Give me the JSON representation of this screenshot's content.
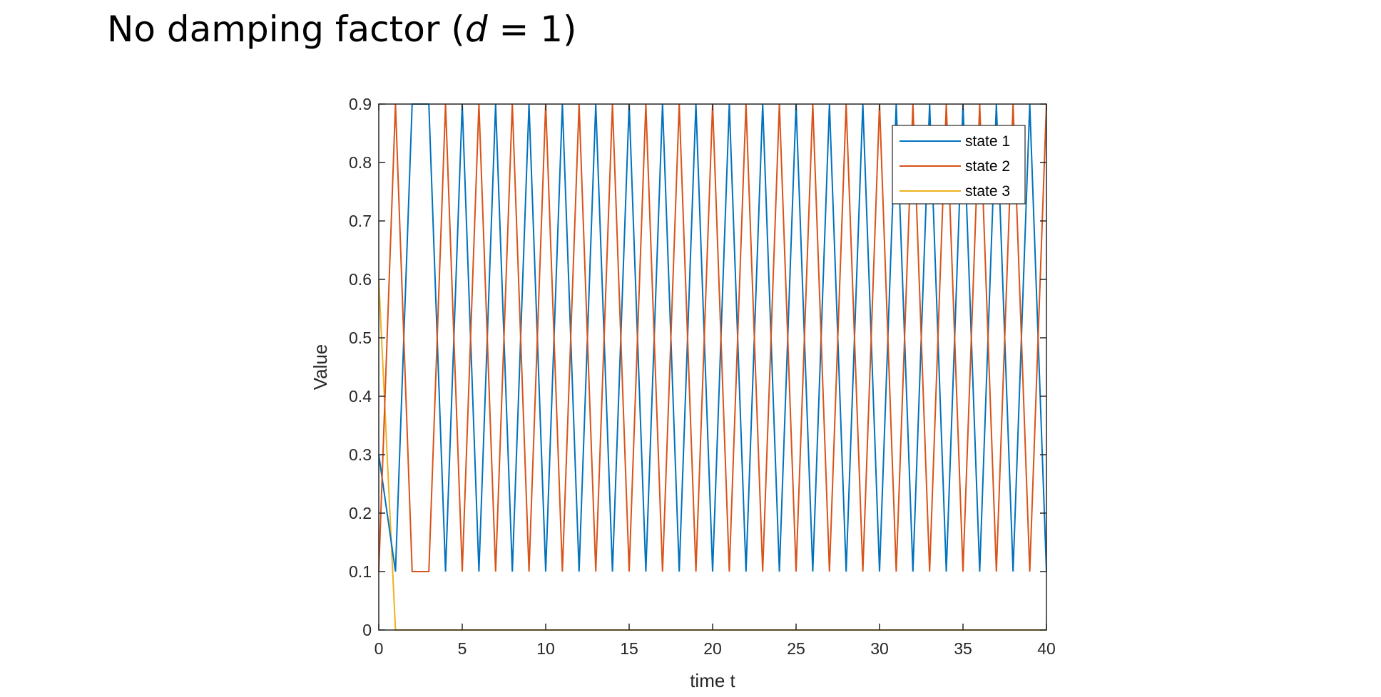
{
  "slide": {
    "title_prefix": "No damping factor (",
    "title_var": "d",
    "title_suffix": " = 1)"
  },
  "chart_data": {
    "type": "line",
    "title": "",
    "xlabel": "time t",
    "ylabel": "Value",
    "xlim": [
      0,
      40
    ],
    "ylim": [
      0,
      0.9
    ],
    "xticks": [
      0,
      5,
      10,
      15,
      20,
      25,
      30,
      35,
      40
    ],
    "yticks": [
      0,
      0.1,
      0.2,
      0.3,
      0.4,
      0.5,
      0.6,
      0.7,
      0.8,
      0.9
    ],
    "ytick_labels": [
      "0",
      "0.1",
      "0.2",
      "0.3",
      "0.4",
      "0.5",
      "0.6",
      "0.7",
      "0.8",
      "0.9"
    ],
    "grid": false,
    "legend_position": "top-right",
    "series": [
      {
        "name": "state 1",
        "color": "#0072BD",
        "x": [
          0,
          1,
          2,
          3,
          4,
          5,
          6,
          7,
          8,
          9,
          10,
          11,
          12,
          13,
          14,
          15,
          16,
          17,
          18,
          19,
          20,
          21,
          22,
          23,
          24,
          25,
          26,
          27,
          28,
          29,
          30,
          31,
          32,
          33,
          34,
          35,
          36,
          37,
          38,
          39,
          40
        ],
        "y": [
          0.3,
          0.1,
          0.9,
          0.9,
          0.1,
          0.9,
          0.1,
          0.9,
          0.1,
          0.9,
          0.1,
          0.9,
          0.1,
          0.9,
          0.1,
          0.9,
          0.1,
          0.9,
          0.1,
          0.9,
          0.1,
          0.9,
          0.1,
          0.9,
          0.1,
          0.9,
          0.1,
          0.9,
          0.1,
          0.9,
          0.1,
          0.9,
          0.1,
          0.9,
          0.1,
          0.9,
          0.1,
          0.9,
          0.1,
          0.9,
          0.1
        ]
      },
      {
        "name": "state 2",
        "color": "#D95319",
        "x": [
          0,
          1,
          2,
          3,
          4,
          5,
          6,
          7,
          8,
          9,
          10,
          11,
          12,
          13,
          14,
          15,
          16,
          17,
          18,
          19,
          20,
          21,
          22,
          23,
          24,
          25,
          26,
          27,
          28,
          29,
          30,
          31,
          32,
          33,
          34,
          35,
          36,
          37,
          38,
          39,
          40
        ],
        "y": [
          0.1,
          0.9,
          0.1,
          0.1,
          0.9,
          0.1,
          0.9,
          0.1,
          0.9,
          0.1,
          0.9,
          0.1,
          0.9,
          0.1,
          0.9,
          0.1,
          0.9,
          0.1,
          0.9,
          0.1,
          0.9,
          0.1,
          0.9,
          0.1,
          0.9,
          0.1,
          0.9,
          0.1,
          0.9,
          0.1,
          0.9,
          0.1,
          0.9,
          0.1,
          0.9,
          0.1,
          0.9,
          0.1,
          0.9,
          0.1,
          0.9
        ]
      },
      {
        "name": "state 3",
        "color": "#EDB120",
        "x": [
          0,
          1,
          2,
          3,
          4,
          5,
          6,
          7,
          8,
          9,
          10,
          11,
          12,
          13,
          14,
          15,
          16,
          17,
          18,
          19,
          20,
          21,
          22,
          23,
          24,
          25,
          26,
          27,
          28,
          29,
          30,
          31,
          32,
          33,
          34,
          35,
          36,
          37,
          38,
          39,
          40
        ],
        "y": [
          0.6,
          0,
          0,
          0,
          0,
          0,
          0,
          0,
          0,
          0,
          0,
          0,
          0,
          0,
          0,
          0,
          0,
          0,
          0,
          0,
          0,
          0,
          0,
          0,
          0,
          0,
          0,
          0,
          0,
          0,
          0,
          0,
          0,
          0,
          0,
          0,
          0,
          0,
          0,
          0,
          0
        ]
      }
    ]
  }
}
